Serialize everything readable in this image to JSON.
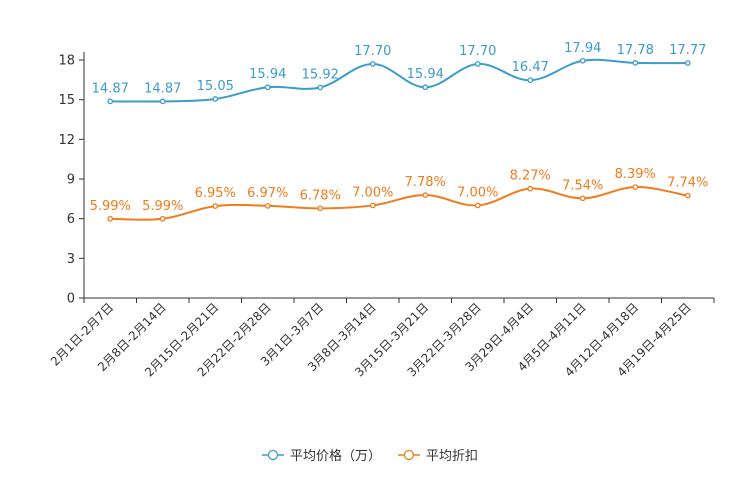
{
  "chart_data": {
    "type": "line",
    "title": "",
    "xlabel": "",
    "ylabel": "",
    "ylim": [
      0,
      18
    ],
    "yticks": [
      "0",
      "3",
      "6",
      "9",
      "12",
      "15",
      "18"
    ],
    "grid": false,
    "legend_position": "bottom",
    "categories": [
      "2月1日-2月7日",
      "2月8日-2月14日",
      "2月15日-2月21日",
      "2月22日-2月28日",
      "3月1日-3月7日",
      "3月8日-3月14日",
      "3月15日-3月21日",
      "3月22日-3月28日",
      "3月29日-4月4日",
      "4月5日-4月11日",
      "4月12日-4月18日",
      "4月19日-4月25日"
    ],
    "series": [
      {
        "name": "平均价格（万）",
        "color": "#3c9ccc",
        "values": [
          14.87,
          14.87,
          15.05,
          15.94,
          15.92,
          17.7,
          15.94,
          17.7,
          16.47,
          17.94,
          17.78,
          17.77
        ],
        "labels": [
          "14.87",
          "14.87",
          "15.05",
          "15.94",
          "15.92",
          "17.70",
          "15.94",
          "17.70",
          "16.47",
          "17.94",
          "17.78",
          "17.77"
        ]
      },
      {
        "name": "平均折扣",
        "color": "#f07c1c",
        "values": [
          5.99,
          5.99,
          6.95,
          6.97,
          6.78,
          7.0,
          7.78,
          7.0,
          8.27,
          7.54,
          8.39,
          7.74
        ],
        "labels": [
          "5.99%",
          "5.99%",
          "6.95%",
          "6.97%",
          "6.78%",
          "7.00%",
          "7.78%",
          "7.00%",
          "8.27%",
          "7.54%",
          "8.39%",
          "7.74%"
        ]
      }
    ]
  }
}
